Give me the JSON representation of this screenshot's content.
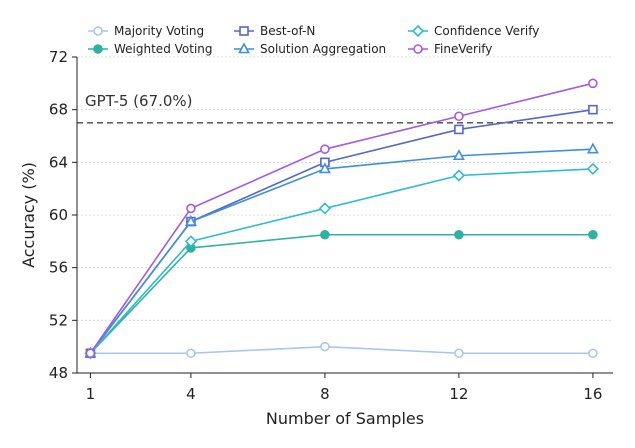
{
  "chart_data": {
    "type": "line",
    "xlabel": "Number of Samples",
    "ylabel": "Accuracy (%)",
    "x": [
      1,
      4,
      8,
      12,
      16
    ],
    "x_ticks": [
      1,
      4,
      8,
      12,
      16
    ],
    "y_ticks": [
      48,
      52,
      56,
      60,
      64,
      68,
      72
    ],
    "ylim": [
      48,
      72
    ],
    "grid": "horizontal dotted",
    "legend_placement": "top",
    "reference_line": {
      "label": "GPT-5 (67.0%)",
      "value": 67.0,
      "color": "#444444"
    },
    "series": [
      {
        "name": "Majority Voting",
        "color": "#a9c7ee",
        "marker": "circle",
        "values": [
          49.5,
          49.5,
          50.0,
          49.5,
          49.5
        ]
      },
      {
        "name": "Weighted Voting",
        "color": "#2db39f",
        "marker": "circle-filled",
        "values": [
          49.5,
          57.5,
          58.5,
          58.5,
          58.5
        ]
      },
      {
        "name": "Best-of-N",
        "color": "#5566cc",
        "marker": "square",
        "values": [
          49.5,
          59.5,
          64.0,
          66.5,
          68.0
        ]
      },
      {
        "name": "Solution Aggregation",
        "color": "#3d8fe0",
        "marker": "triangle",
        "values": [
          49.5,
          59.5,
          63.5,
          64.5,
          65.0
        ]
      },
      {
        "name": "Confidence Verify",
        "color": "#2fbccf",
        "marker": "diamond",
        "values": [
          49.5,
          58.0,
          60.5,
          63.0,
          63.5
        ]
      },
      {
        "name": "FineVerify",
        "color": "#a259e8",
        "marker": "circle",
        "values": [
          49.5,
          60.5,
          65.0,
          67.5,
          70.0
        ]
      }
    ]
  }
}
